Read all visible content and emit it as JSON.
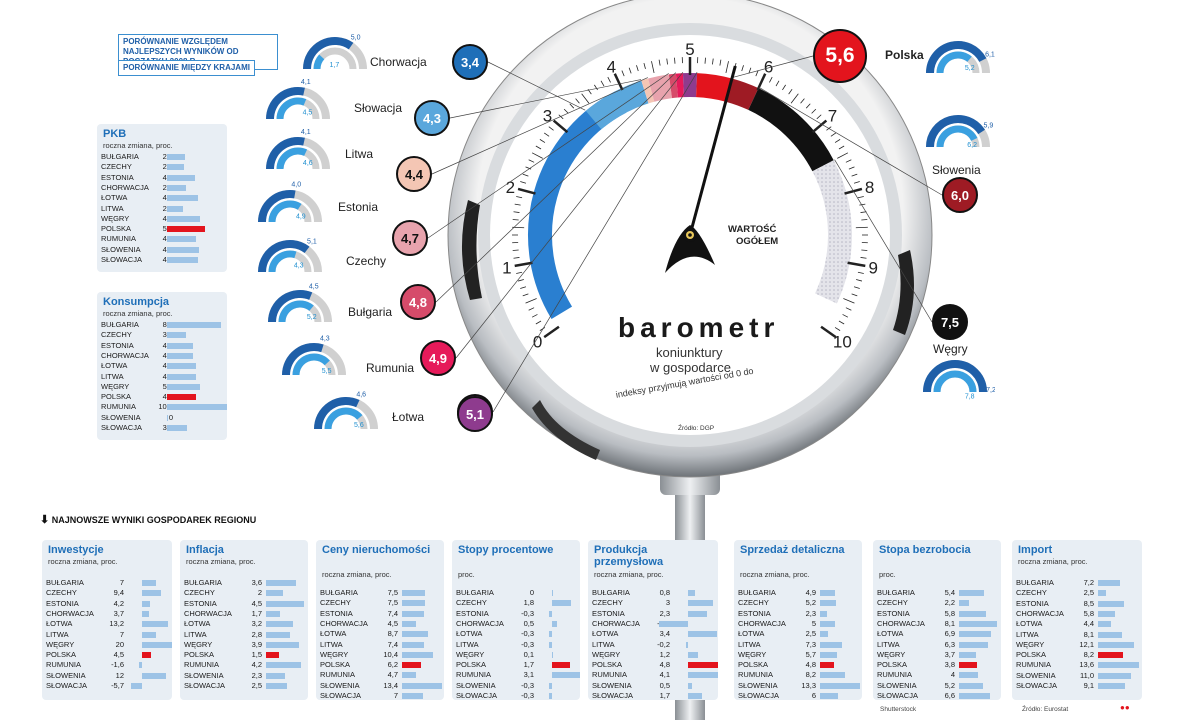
{
  "legend": {
    "item1": "PORÓWNANIE WZGLĘDEM NAJLEPSZYCH WYNIKÓW OD POCZĄTKU 2008 R.",
    "item2": "PORÓWNANIE MIĘDZY KRAJAMI"
  },
  "gauge": {
    "title": "barometr",
    "subtitle1": "koniunktury",
    "subtitle2": "w gospodarce",
    "note": "indeksy przyjmują wartości od 0 do",
    "source": "Źródło: DGP",
    "center_label1": "WARTOŚĆ",
    "center_label2": "OGÓŁEM",
    "ticks": [
      "0",
      "1",
      "2",
      "3",
      "4",
      "5",
      "6",
      "7",
      "8",
      "9",
      "10"
    ],
    "needle_value": 5.6
  },
  "countries": [
    {
      "name": "Chorwacja",
      "value": "3,4",
      "color": "#1f6fb8",
      "g_outer": "5,0",
      "g_inner": "1,7"
    },
    {
      "name": "Słowacja",
      "value": "4,3",
      "color": "#5aa7dc",
      "g_outer": "4,1",
      "g_inner": "4,5"
    },
    {
      "name": "Litwa",
      "value": "4,4",
      "color": "#f4c6b4",
      "g_outer": "4,1",
      "g_inner": "4,6"
    },
    {
      "name": "Estonia",
      "value": "4,7",
      "color": "#e8a3ad",
      "g_outer": "4,0",
      "g_inner": "4,9"
    },
    {
      "name": "Czechy",
      "value": "4,8",
      "color": "#d64b6a",
      "g_outer": "5,1",
      "g_inner": "4,3"
    },
    {
      "name": "Bułgaria",
      "value": "4,9",
      "color": "#e61a5a",
      "g_outer": "4,5",
      "g_inner": "5,2"
    },
    {
      "name": "Rumunia",
      "value": "5,1",
      "color": "#8e3b8e",
      "g_outer": "4,3",
      "g_inner": "5,5"
    },
    {
      "name": "Łotwa",
      "value": "",
      "color": "#8e3b8e",
      "g_outer": "4,6",
      "g_inner": "5,6"
    },
    {
      "name": "Polska",
      "value": "5,6",
      "color": "#e3141d",
      "g_outer": "6,1",
      "g_inner": "5,2"
    },
    {
      "name": "Słowenia",
      "value": "6,0",
      "color": "#9e1b24",
      "g_outer": "5,9",
      "g_inner": "6,2"
    },
    {
      "name": "Węgry",
      "value": "7,5",
      "color": "#111111",
      "g_outer": "7,2",
      "g_inner": "7,8"
    }
  ],
  "left_panels": [
    {
      "title": "PKB",
      "sub": "roczna zmiana, proc.",
      "max": 6,
      "rows": [
        [
          "BUŁGARIA",
          "2,7",
          2.7
        ],
        [
          "CZECHY",
          "2,5",
          2.5
        ],
        [
          "ESTONIA",
          "4,2",
          4.2
        ],
        [
          "CHORWACJA",
          "2,8",
          2.8
        ],
        [
          "ŁOTWA",
          "4,7",
          4.7
        ],
        [
          "LITWA",
          "2,4",
          2.4
        ],
        [
          "WĘGRY",
          "4,9",
          4.9
        ],
        [
          "POLSKA",
          "5,7",
          5.7
        ],
        [
          "RUMUNIA",
          "4,3",
          4.3
        ],
        [
          "SŁOWENIA",
          "4,8",
          4.8
        ],
        [
          "SŁOWACJA",
          "4,6",
          4.6
        ]
      ]
    },
    {
      "title": "Konsumpcja",
      "sub": "roczna zmiana, proc.",
      "max": 9,
      "rows": [
        [
          "BUŁGARIA",
          "8,6",
          8.6
        ],
        [
          "CZECHY",
          "3,1",
          3.1
        ],
        [
          "ESTONIA",
          "4,1",
          4.1
        ],
        [
          "CHORWACJA",
          "4,2",
          4.2
        ],
        [
          "ŁOTWA",
          "4,7",
          4.7
        ],
        [
          "LITWA",
          "4,6",
          4.6
        ],
        [
          "WĘGRY",
          "5,3",
          5.3
        ],
        [
          "POLSKA",
          "4,7",
          4.7
        ],
        [
          "RUMUNIA",
          "10,0",
          10.0
        ],
        [
          "SŁOWENIA",
          "0",
          0
        ],
        [
          "SŁOWACJA",
          "3,2",
          3.2
        ]
      ]
    }
  ],
  "section_heading": "NAJNOWSZE WYNIKI GOSPODAREK REGIONU",
  "bottom_panels": [
    {
      "title": "Inwestycje",
      "sub": "roczna zmiana, proc.",
      "max": 20,
      "rows": [
        [
          "BUŁGARIA",
          "7",
          7
        ],
        [
          "CZECHY",
          "9,4",
          9.4
        ],
        [
          "ESTONIA",
          "4,2",
          4.2
        ],
        [
          "CHORWACJA",
          "3,7",
          3.7
        ],
        [
          "ŁOTWA",
          "13,2",
          13.2
        ],
        [
          "LITWA",
          "7",
          7
        ],
        [
          "WĘGRY",
          "20",
          20
        ],
        [
          "POLSKA",
          "4,5",
          4.5
        ],
        [
          "RUMUNIA",
          "-1,6",
          -1.6
        ],
        [
          "SŁOWENIA",
          "12",
          12
        ],
        [
          "SŁOWACJA",
          "-5,7",
          -5.7
        ]
      ]
    },
    {
      "title": "Inflacja",
      "sub": "roczna zmiana, proc.",
      "max": 5,
      "rows": [
        [
          "BUŁGARIA",
          "3,6",
          3.6
        ],
        [
          "CZECHY",
          "2",
          2
        ],
        [
          "ESTONIA",
          "4,5",
          4.5
        ],
        [
          "CHORWACJA",
          "1,7",
          1.7
        ],
        [
          "ŁOTWA",
          "3,2",
          3.2
        ],
        [
          "LITWA",
          "2,8",
          2.8
        ],
        [
          "WĘGRY",
          "3,9",
          3.9
        ],
        [
          "POLSKA",
          "1,5",
          1.5
        ],
        [
          "RUMUNIA",
          "4,2",
          4.2
        ],
        [
          "SŁOWENIA",
          "2,3",
          2.3
        ],
        [
          "SŁOWACJA",
          "2,5",
          2.5
        ]
      ]
    },
    {
      "title": "Ceny nieruchomości",
      "sub": "roczna zmiana, proc.",
      "max": 14,
      "rows": [
        [
          "BUŁGARIA",
          "7,5",
          7.5
        ],
        [
          "CZECHY",
          "7,5",
          7.5
        ],
        [
          "ESTONIA",
          "7,4",
          7.4
        ],
        [
          "CHORWACJA",
          "4,5",
          4.5
        ],
        [
          "ŁOTWA",
          "8,7",
          8.7
        ],
        [
          "LITWA",
          "7,4",
          7.4
        ],
        [
          "WĘGRY",
          "10,4",
          10.4
        ],
        [
          "POLSKA",
          "6,2",
          6.2
        ],
        [
          "RUMUNIA",
          "4,7",
          4.7
        ],
        [
          "SŁOWENIA",
          "13,4",
          13.4
        ],
        [
          "SŁOWACJA",
          "7",
          7
        ]
      ]
    },
    {
      "title": "Stopy procentowe",
      "sub": "proc.",
      "max": 4,
      "rows": [
        [
          "BUŁGARIA",
          "0",
          0
        ],
        [
          "CZECHY",
          "1,8",
          1.8
        ],
        [
          "ESTONIA",
          "-0,3",
          -0.3
        ],
        [
          "CHORWACJA",
          "0,5",
          0.5
        ],
        [
          "ŁOTWA",
          "-0,3",
          -0.3
        ],
        [
          "LITWA",
          "-0,3",
          -0.3
        ],
        [
          "WĘGRY",
          "0,1",
          0.1
        ],
        [
          "POLSKA",
          "1,7",
          1.7
        ],
        [
          "RUMUNIA",
          "3,1",
          3.1
        ],
        [
          "SŁOWENIA",
          "-0,3",
          -0.3
        ],
        [
          "SŁOWACJA",
          "-0,3",
          -0.3
        ]
      ]
    },
    {
      "title": "Produkcja przemysłowa",
      "sub": "roczna zmiana, proc.",
      "max": 5,
      "rows": [
        [
          "BUŁGARIA",
          "0,8",
          0.8
        ],
        [
          "CZECHY",
          "3",
          3
        ],
        [
          "ESTONIA",
          "2,3",
          2.3
        ],
        [
          "CHORWACJA",
          "-3,4",
          -3.4
        ],
        [
          "ŁOTWA",
          "3,4",
          3.4
        ],
        [
          "LITWA",
          "-0,2",
          -0.2
        ],
        [
          "WĘGRY",
          "1,2",
          1.2
        ],
        [
          "POLSKA",
          "4,8",
          4.8
        ],
        [
          "RUMUNIA",
          "4,1",
          4.1
        ],
        [
          "SŁOWENIA",
          "0,5",
          0.5
        ],
        [
          "SŁOWACJA",
          "1,7",
          1.7
        ]
      ]
    },
    {
      "title": "Sprzedaż detaliczna",
      "sub": "roczna zmiana, proc.",
      "max": 14,
      "rows": [
        [
          "BUŁGARIA",
          "4,9",
          4.9
        ],
        [
          "CZECHY",
          "5,2",
          5.2
        ],
        [
          "ESTONIA",
          "2,3",
          2.3
        ],
        [
          "CHORWACJA",
          "5",
          5
        ],
        [
          "ŁOTWA",
          "2,5",
          2.5
        ],
        [
          "LITWA",
          "7,3",
          7.3
        ],
        [
          "WĘGRY",
          "5,7",
          5.7
        ],
        [
          "POLSKA",
          "4,8",
          4.8
        ],
        [
          "RUMUNIA",
          "8,2",
          8.2
        ],
        [
          "SŁOWENIA",
          "13,3",
          13.3
        ],
        [
          "SŁOWACJA",
          "6",
          6
        ]
      ]
    },
    {
      "title": "Stopa bezrobocia",
      "sub": "proc.",
      "max": 9,
      "rows": [
        [
          "BUŁGARIA",
          "5,4",
          5.4
        ],
        [
          "CZECHY",
          "2,2",
          2.2
        ],
        [
          "ESTONIA",
          "5,8",
          5.8
        ],
        [
          "CHORWACJA",
          "8,1",
          8.1
        ],
        [
          "ŁOTWA",
          "6,9",
          6.9
        ],
        [
          "LITWA",
          "6,3",
          6.3
        ],
        [
          "WĘGRY",
          "3,7",
          3.7
        ],
        [
          "POLSKA",
          "3,8",
          3.8
        ],
        [
          "RUMUNIA",
          "4",
          4
        ],
        [
          "SŁOWENIA",
          "5,2",
          5.2
        ],
        [
          "SŁOWACJA",
          "6,6",
          6.6
        ]
      ]
    },
    {
      "title": "Import",
      "sub": "roczna zmiana, proc.",
      "max": 14,
      "rows": [
        [
          "BUŁGARIA",
          "7,2",
          7.2
        ],
        [
          "CZECHY",
          "2,5",
          2.5
        ],
        [
          "ESTONIA",
          "8,5",
          8.5
        ],
        [
          "CHORWACJA",
          "5,8",
          5.8
        ],
        [
          "ŁOTWA",
          "4,4",
          4.4
        ],
        [
          "LITWA",
          "8,1",
          8.1
        ],
        [
          "WĘGRY",
          "12,1",
          12.1
        ],
        [
          "POLSKA",
          "8,2",
          8.2
        ],
        [
          "RUMUNIA",
          "13,6",
          13.6
        ],
        [
          "SŁOWENIA",
          "11,0",
          11.0
        ],
        [
          "SŁOWACJA",
          "9,1",
          9.1
        ]
      ]
    }
  ],
  "footer": {
    "left": "Shutterstock",
    "right": "Źródło: Eurostat"
  },
  "chart_data": {
    "type": "bar",
    "title": "barometr koniunktury w gospodarce",
    "categories": [
      "Chorwacja",
      "Słowacja",
      "Litwa",
      "Estonia",
      "Czechy",
      "Bułgaria",
      "Rumunia",
      "Łotwa",
      "Polska",
      "Słowenia",
      "Węgry"
    ],
    "series": [
      {
        "values": [
          3.4,
          4.3,
          4.4,
          4.7,
          4.8,
          4.9,
          5.1,
          5.1,
          5.6,
          6.0,
          7.5
        ]
      }
    ],
    "ylim": [
      0,
      10
    ]
  }
}
